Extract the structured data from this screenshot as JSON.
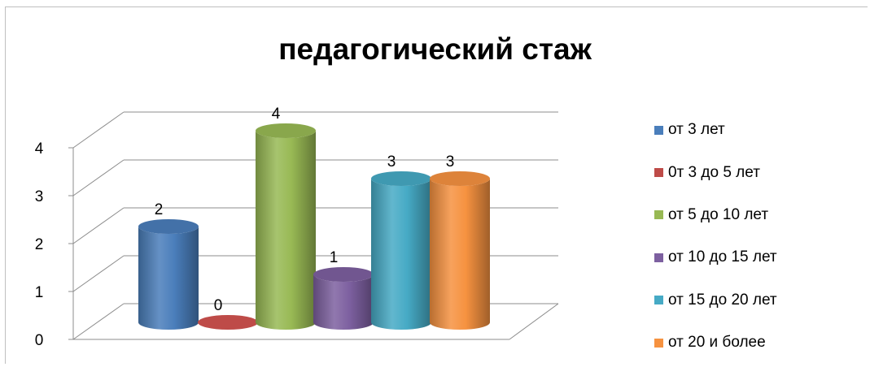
{
  "chart_data": {
    "type": "bar",
    "title": "педагогический стаж",
    "xlabel": "",
    "ylabel": "",
    "ylim": [
      0,
      4
    ],
    "yticks": [
      "0",
      "1",
      "2",
      "3",
      "4"
    ],
    "grid": true,
    "legend_position": "right",
    "style": "3d-cylinder",
    "series": [
      {
        "name": "от 3 лет",
        "value": 2,
        "color": "#4a7ebb"
      },
      {
        "name": "0т 3 до 5 лет",
        "value": 0,
        "color": "#be4b48"
      },
      {
        "name": "от 5 до 10 лет",
        "value": 4,
        "color": "#98b954"
      },
      {
        "name": "от 10 до 15 лет",
        "value": 1,
        "color": "#7d60a0"
      },
      {
        "name": "от 15 до 20 лет",
        "value": 3,
        "color": "#46aac5"
      },
      {
        "name": "от 20 и более",
        "value": 3,
        "color": "#f69240"
      }
    ],
    "data_labels": [
      "2",
      "0",
      "4",
      "1",
      "3",
      "3"
    ]
  }
}
